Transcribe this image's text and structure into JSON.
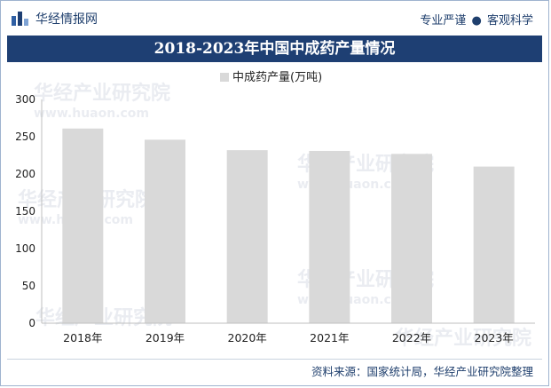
{
  "header": {
    "brand": "华经情报网",
    "slogan_left": "专业严谨",
    "slogan_sep": "●",
    "slogan_right": "客观科学",
    "logo_icon": "bar-chart-logo-icon"
  },
  "title": "2018-2023年中国中成药产量情况",
  "source": "资料来源：国家统计局，华经产业研究院整理",
  "colors": {
    "title_bg": "#1e3f73",
    "bar": "#d9d9d9",
    "text_dark": "#1f3f6d"
  },
  "chart_data": {
    "type": "bar",
    "categories": [
      "2018年",
      "2019年",
      "2020年",
      "2021年",
      "2022年",
      "2023年"
    ],
    "series": [
      {
        "name": "中成药产量(万吨)",
        "values": [
          261,
          246,
          232,
          231,
          227,
          210
        ]
      }
    ],
    "ylim": [
      0,
      300
    ],
    "yticks": [
      0,
      50,
      100,
      150,
      200,
      250,
      300
    ],
    "grid": false,
    "legend": "top-center"
  }
}
